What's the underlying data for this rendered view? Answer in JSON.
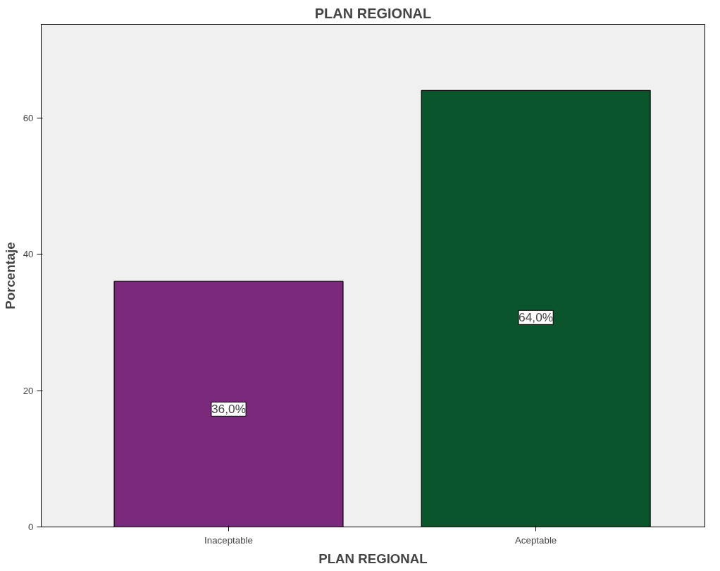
{
  "chart_data": {
    "type": "bar",
    "title": "PLAN REGIONAL",
    "xlabel": "PLAN REGIONAL",
    "ylabel": "Porcentaje",
    "categories": [
      "Inaceptable",
      "Aceptable"
    ],
    "values": [
      36.0,
      64.0
    ],
    "colors": [
      "#7b2a7b",
      "#0b552d"
    ],
    "value_labels": [
      "36,0%",
      "64,0%"
    ],
    "ylim": [
      0,
      73.7
    ],
    "yticks": [
      0,
      20,
      40,
      60
    ],
    "grid": false
  }
}
